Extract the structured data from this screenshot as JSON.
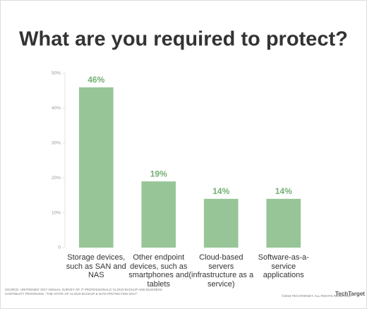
{
  "chart_data": {
    "type": "bar",
    "title": "What are you required to protect?",
    "categories": [
      "Storage devices, such as SAN and NAS",
      "Other endpoint devices, such as smartphones and tablets",
      "Cloud-based servers (infrastructure as a service)",
      "Software-as-a-service applications"
    ],
    "values": [
      46,
      19,
      14,
      14
    ],
    "value_labels": [
      "46%",
      "19%",
      "14%",
      "14%"
    ],
    "color": "#97c597",
    "ylim": [
      0,
      50
    ],
    "yticks": [
      {
        "value": 0,
        "label": "0"
      },
      {
        "value": 10,
        "label": "10%"
      },
      {
        "value": 20,
        "label": "20%"
      },
      {
        "value": 30,
        "label": "30%"
      },
      {
        "value": 40,
        "label": "40%"
      },
      {
        "value": 50,
        "label": "50%"
      }
    ],
    "grid": false,
    "source": "SOURCE: UNITRENDS' 2017 ANNUAL SURVEY OF IT PROFESSIONALS' CLOUD BACKUP AND BUSINESS CONTINUITY PROGRAMS, \"THE STATE OF CLOUD BACKUP & DATA PROTECTION 2017\"",
    "copyright": "©2018 TECHTARGET. ALL RIGHTS RESERVED.",
    "logo": "TechTarget"
  }
}
